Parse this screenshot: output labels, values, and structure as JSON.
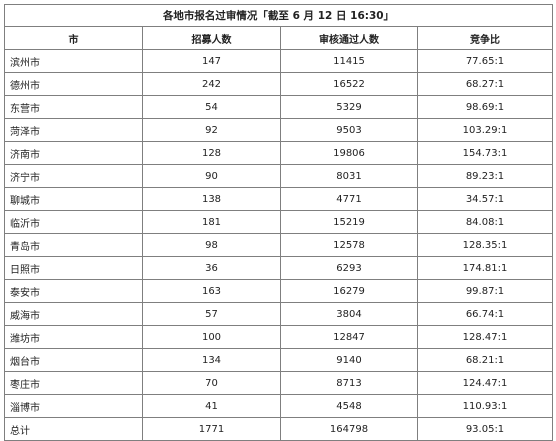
{
  "title": "各地市报名过审情况「截至 6 月 12 日 16:30」",
  "headers": {
    "city": "市",
    "recruit": "招募人数",
    "passed": "审核通过人数",
    "ratio": "竞争比"
  },
  "rows": [
    {
      "city": "滨州市",
      "recruit": "147",
      "passed": "11415",
      "ratio": "77.65:1"
    },
    {
      "city": "德州市",
      "recruit": "242",
      "passed": "16522",
      "ratio": "68.27:1"
    },
    {
      "city": "东营市",
      "recruit": "54",
      "passed": "5329",
      "ratio": "98.69:1"
    },
    {
      "city": "菏泽市",
      "recruit": "92",
      "passed": "9503",
      "ratio": "103.29:1"
    },
    {
      "city": "济南市",
      "recruit": "128",
      "passed": "19806",
      "ratio": "154.73:1"
    },
    {
      "city": "济宁市",
      "recruit": "90",
      "passed": "8031",
      "ratio": "89.23:1"
    },
    {
      "city": "聊城市",
      "recruit": "138",
      "passed": "4771",
      "ratio": "34.57:1"
    },
    {
      "city": "临沂市",
      "recruit": "181",
      "passed": "15219",
      "ratio": "84.08:1"
    },
    {
      "city": "青岛市",
      "recruit": "98",
      "passed": "12578",
      "ratio": "128.35:1"
    },
    {
      "city": "日照市",
      "recruit": "36",
      "passed": "6293",
      "ratio": "174.81:1"
    },
    {
      "city": "泰安市",
      "recruit": "163",
      "passed": "16279",
      "ratio": "99.87:1"
    },
    {
      "city": "威海市",
      "recruit": "57",
      "passed": "3804",
      "ratio": "66.74:1"
    },
    {
      "city": "潍坊市",
      "recruit": "100",
      "passed": "12847",
      "ratio": "128.47:1"
    },
    {
      "city": "烟台市",
      "recruit": "134",
      "passed": "9140",
      "ratio": "68.21:1"
    },
    {
      "city": "枣庄市",
      "recruit": "70",
      "passed": "8713",
      "ratio": "124.47:1"
    },
    {
      "city": "淄博市",
      "recruit": "41",
      "passed": "4548",
      "ratio": "110.93:1"
    }
  ],
  "total": {
    "city": "总计",
    "recruit": "1771",
    "passed": "164798",
    "ratio": "93.05:1"
  }
}
